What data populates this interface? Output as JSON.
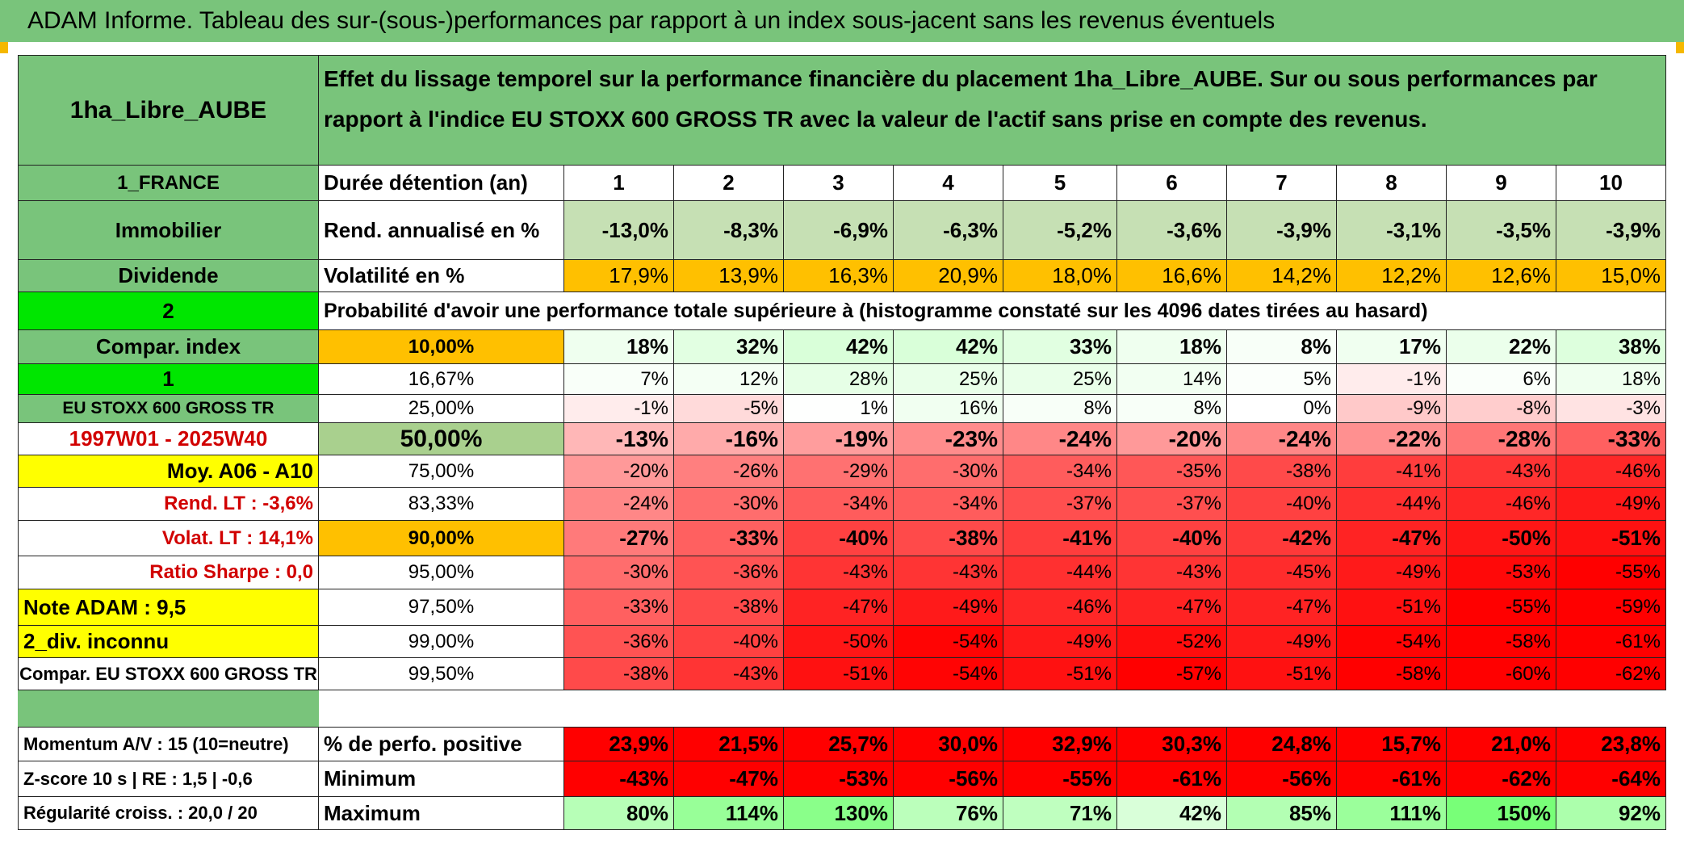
{
  "banner": "ADAM Informe. Tableau des sur-(sous-)performances par rapport à un index sous-jacent sans les revenus éventuels",
  "fund_name": "1ha_Libre_AUBE",
  "description": "Effet du lissage temporel sur la performance financière du placement 1ha_Libre_AUBE. Sur ou sous performances par rapport à l'indice EU STOXX 600 GROSS TR avec la valeur de l'actif sans prise en compte des revenus.",
  "left_labels": {
    "country": "1_FRANCE",
    "asset_class": "Immobilier",
    "strategy": "Dividende",
    "two": "2",
    "compar_index": "Compar. index",
    "one": "1",
    "index_name": "EU STOXX 600 GROSS TR",
    "period": "1997W01 - 2025W40",
    "moy": "Moy. A06 - A10",
    "rend_lt": "Rend. LT :   -3,6%",
    "volat_lt": "Volat. LT :   14,1%",
    "sharpe": "Ratio Sharpe :    0,0",
    "note": "Note ADAM : 9,5",
    "div": "2_div. inconnu",
    "compar_full": "Compar. EU STOXX 600 GROSS TR",
    "momentum": "Momentum A/V : 15 (10=neutre)",
    "zscore": "Z-score 10 s | RE : 1,5 | -0,6",
    "regularite": "Régularité croiss. : 20,0 / 20"
  },
  "header_row": {
    "label": "Durée détention (an)",
    "years": [
      "1",
      "2",
      "3",
      "4",
      "5",
      "6",
      "7",
      "8",
      "9",
      "10"
    ]
  },
  "rend_row": {
    "label": "Rend. annualisé en %",
    "values": [
      "-13,0%",
      "-8,3%",
      "-6,9%",
      "-6,3%",
      "-5,2%",
      "-3,6%",
      "-3,9%",
      "-3,1%",
      "-3,5%",
      "-3,9%"
    ]
  },
  "vol_row": {
    "label": "Volatilité en %",
    "values": [
      "17,9%",
      "13,9%",
      "16,3%",
      "20,9%",
      "18,0%",
      "16,6%",
      "14,2%",
      "12,2%",
      "12,6%",
      "15,0%"
    ]
  },
  "proba_title": "Probabilité d'avoir une performance totale supérieure à (histogramme constaté sur les 4096 dates tirées au hasard)",
  "quantile_rows": [
    {
      "label": "10,00%",
      "values": [
        "18%",
        "32%",
        "42%",
        "42%",
        "33%",
        "18%",
        "8%",
        "17%",
        "22%",
        "38%"
      ]
    },
    {
      "label": "16,67%",
      "values": [
        "7%",
        "12%",
        "28%",
        "25%",
        "25%",
        "14%",
        "5%",
        "-1%",
        "6%",
        "18%"
      ]
    },
    {
      "label": "25,00%",
      "values": [
        "-1%",
        "-5%",
        "1%",
        "16%",
        "8%",
        "8%",
        "0%",
        "-9%",
        "-8%",
        "-3%"
      ]
    },
    {
      "label": "50,00%",
      "values": [
        "-13%",
        "-16%",
        "-19%",
        "-23%",
        "-24%",
        "-20%",
        "-24%",
        "-22%",
        "-28%",
        "-33%"
      ]
    },
    {
      "label": "75,00%",
      "values": [
        "-20%",
        "-26%",
        "-29%",
        "-30%",
        "-34%",
        "-35%",
        "-38%",
        "-41%",
        "-43%",
        "-46%"
      ]
    },
    {
      "label": "83,33%",
      "values": [
        "-24%",
        "-30%",
        "-34%",
        "-34%",
        "-37%",
        "-37%",
        "-40%",
        "-44%",
        "-46%",
        "-49%"
      ]
    },
    {
      "label": "90,00%",
      "values": [
        "-27%",
        "-33%",
        "-40%",
        "-38%",
        "-41%",
        "-40%",
        "-42%",
        "-47%",
        "-50%",
        "-51%"
      ]
    },
    {
      "label": "95,00%",
      "values": [
        "-30%",
        "-36%",
        "-43%",
        "-43%",
        "-44%",
        "-43%",
        "-45%",
        "-49%",
        "-53%",
        "-55%"
      ]
    },
    {
      "label": "97,50%",
      "values": [
        "-33%",
        "-38%",
        "-47%",
        "-49%",
        "-46%",
        "-47%",
        "-47%",
        "-51%",
        "-55%",
        "-59%"
      ]
    },
    {
      "label": "99,00%",
      "values": [
        "-36%",
        "-40%",
        "-50%",
        "-54%",
        "-49%",
        "-52%",
        "-49%",
        "-54%",
        "-58%",
        "-61%"
      ]
    },
    {
      "label": "99,50%",
      "values": [
        "-38%",
        "-43%",
        "-51%",
        "-54%",
        "-51%",
        "-57%",
        "-51%",
        "-58%",
        "-60%",
        "-62%"
      ]
    }
  ],
  "stats_rows": [
    {
      "label": "% de perfo. positive",
      "values": [
        "23,9%",
        "21,5%",
        "25,7%",
        "30,0%",
        "32,9%",
        "30,3%",
        "24,8%",
        "15,7%",
        "21,0%",
        "23,8%"
      ]
    },
    {
      "label": "Minimum",
      "values": [
        "-43%",
        "-47%",
        "-53%",
        "-56%",
        "-55%",
        "-61%",
        "-56%",
        "-61%",
        "-62%",
        "-64%"
      ]
    },
    {
      "label": "Maximum",
      "values": [
        "80%",
        "114%",
        "130%",
        "76%",
        "71%",
        "42%",
        "85%",
        "111%",
        "150%",
        "92%"
      ]
    }
  ],
  "colors": {
    "header_green": "#79c47b",
    "light_green": "#c6e0b4",
    "bright_green": "#00e600",
    "orange": "#ffc000",
    "yellow": "#ffff00",
    "red": "#ff0000"
  }
}
